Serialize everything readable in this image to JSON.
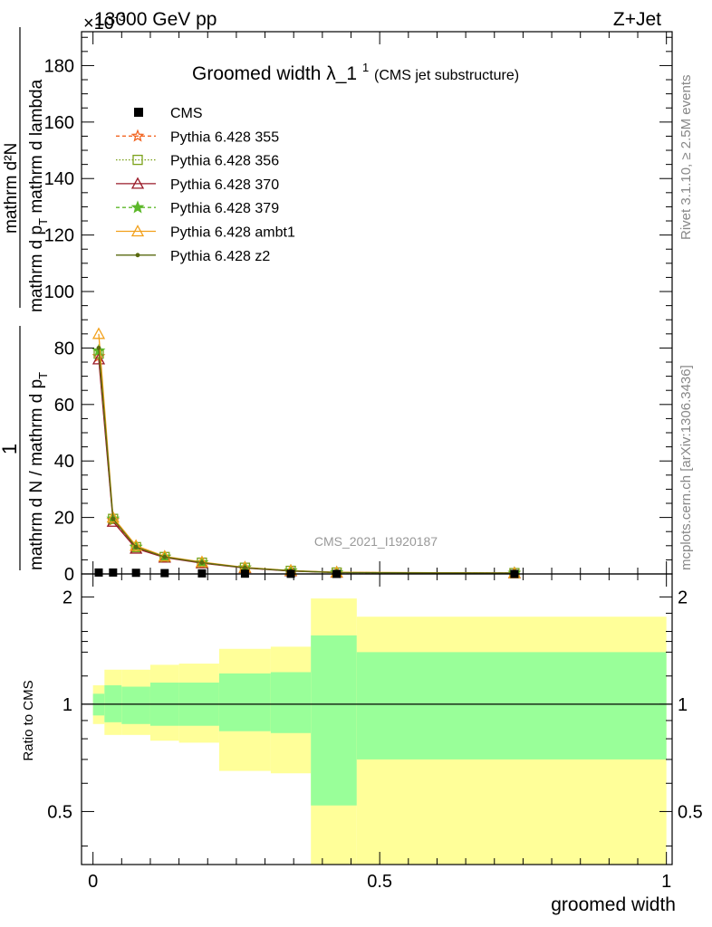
{
  "header": {
    "energy_label": "13000 GeV pp",
    "process_label": "Z+Jet",
    "exponent_label": "×10",
    "exponent_power": "-3"
  },
  "title": {
    "main": "Groomed width",
    "symbol": "λ_1",
    "superscript": "1",
    "sub": "(CMS jet substructure)"
  },
  "side_labels": {
    "rivet": "Rivet 3.1.10, ≥ 2.5M events",
    "mcplots": "mcplots.cern.ch [arXiv:1306.3436]"
  },
  "watermark": "CMS_2021_I1920187",
  "axis": {
    "ylabel_num": "1",
    "ylabel_den_top": "mathrm d N / mathrm d p",
    "ylabel_den_sub": "T",
    "ylabel_num_top": "mathrm d²N",
    "ylabel_num_den": "mathrm d p",
    "ylabel_num_den_sub": "T",
    "ylabel_num_den_rest": " mathrm d lambda",
    "xlabel": "groomed width",
    "ratio_ylabel": "Ratio to CMS"
  },
  "legend": [
    {
      "name": "CMS",
      "color": "#000000",
      "marker": "square-filled",
      "dash": ""
    },
    {
      "name": "Pythia 6.428 355",
      "color": "#f26522",
      "marker": "star-open",
      "dash": "4,3"
    },
    {
      "name": "Pythia 6.428 356",
      "color": "#7ba11a",
      "marker": "square-open",
      "dash": "1.5,2"
    },
    {
      "name": "Pythia 6.428 370",
      "color": "#9a1a28",
      "marker": "triangle-open",
      "dash": ""
    },
    {
      "name": "Pythia 6.428 379",
      "color": "#5cb82a",
      "marker": "star-filled",
      "dash": "4,3"
    },
    {
      "name": "Pythia 6.428 ambt1",
      "color": "#f2a01a",
      "marker": "triangle-open",
      "dash": ""
    },
    {
      "name": "Pythia 6.428 z2",
      "color": "#5a6a10",
      "marker": "dot",
      "dash": ""
    }
  ],
  "chart_data": {
    "type": "line",
    "main": {
      "xlim": [
        -0.02,
        1.01
      ],
      "ylim": [
        0,
        192
      ],
      "yticks": [
        0,
        20,
        40,
        60,
        80,
        100,
        120,
        140,
        160,
        180
      ],
      "x": [
        0.01,
        0.035,
        0.075,
        0.125,
        0.19,
        0.265,
        0.345,
        0.425,
        0.735
      ],
      "cms": [
        0.5,
        0.5,
        0.4,
        0.3,
        0.2,
        0.1,
        0.05,
        0.02,
        0.01
      ],
      "series": [
        {
          "name": "Pythia 6.428 355",
          "values": [
            77,
            19,
            9.5,
            6,
            4,
            2.2,
            1.1,
            0.5,
            0.3
          ]
        },
        {
          "name": "Pythia 6.428 356",
          "values": [
            78,
            19.5,
            9.5,
            6,
            4,
            2.2,
            1.1,
            0.5,
            0.3
          ]
        },
        {
          "name": "Pythia 6.428 370",
          "values": [
            76,
            18.5,
            9,
            5.8,
            3.8,
            2.1,
            1.0,
            0.5,
            0.3
          ]
        },
        {
          "name": "Pythia 6.428 379",
          "values": [
            79,
            19.5,
            9.5,
            6,
            4,
            2.2,
            1.1,
            0.5,
            0.3
          ]
        },
        {
          "name": "Pythia 6.428 ambt1",
          "values": [
            85,
            20,
            10,
            6.2,
            4.2,
            2.3,
            1.2,
            0.6,
            0.3
          ]
        },
        {
          "name": "Pythia 6.428 z2",
          "values": [
            80,
            19.5,
            9.5,
            6,
            4,
            2.2,
            1.1,
            0.5,
            0.3
          ]
        }
      ]
    },
    "ratio": {
      "ylim": [
        0.355,
        2.32
      ],
      "yticks": [
        0.5,
        1,
        2
      ],
      "xticks": [
        0,
        0.5,
        1
      ],
      "bins": [
        {
          "lo": 0.0,
          "hi": 0.02,
          "inner": [
            0.93,
            1.07
          ],
          "outer": [
            0.88,
            1.13
          ]
        },
        {
          "lo": 0.02,
          "hi": 0.05,
          "inner": [
            0.89,
            1.13
          ],
          "outer": [
            0.82,
            1.25
          ]
        },
        {
          "lo": 0.05,
          "hi": 0.1,
          "inner": [
            0.88,
            1.12
          ],
          "outer": [
            0.82,
            1.25
          ]
        },
        {
          "lo": 0.1,
          "hi": 0.15,
          "inner": [
            0.87,
            1.15
          ],
          "outer": [
            0.79,
            1.29
          ]
        },
        {
          "lo": 0.15,
          "hi": 0.22,
          "inner": [
            0.87,
            1.15
          ],
          "outer": [
            0.78,
            1.3
          ]
        },
        {
          "lo": 0.22,
          "hi": 0.31,
          "inner": [
            0.84,
            1.22
          ],
          "outer": [
            0.65,
            1.43
          ]
        },
        {
          "lo": 0.31,
          "hi": 0.38,
          "inner": [
            0.83,
            1.23
          ],
          "outer": [
            0.64,
            1.45
          ]
        },
        {
          "lo": 0.38,
          "hi": 0.46,
          "inner": [
            0.52,
            1.56
          ],
          "outer": [
            0.3,
            1.98
          ]
        },
        {
          "lo": 0.46,
          "hi": 1.0,
          "inner": [
            0.7,
            1.4
          ],
          "outer": [
            0.3,
            1.76
          ]
        }
      ],
      "line": 1.0
    },
    "colors": {
      "inner_band": "#99ff99",
      "outer_band": "#ffff99"
    }
  }
}
